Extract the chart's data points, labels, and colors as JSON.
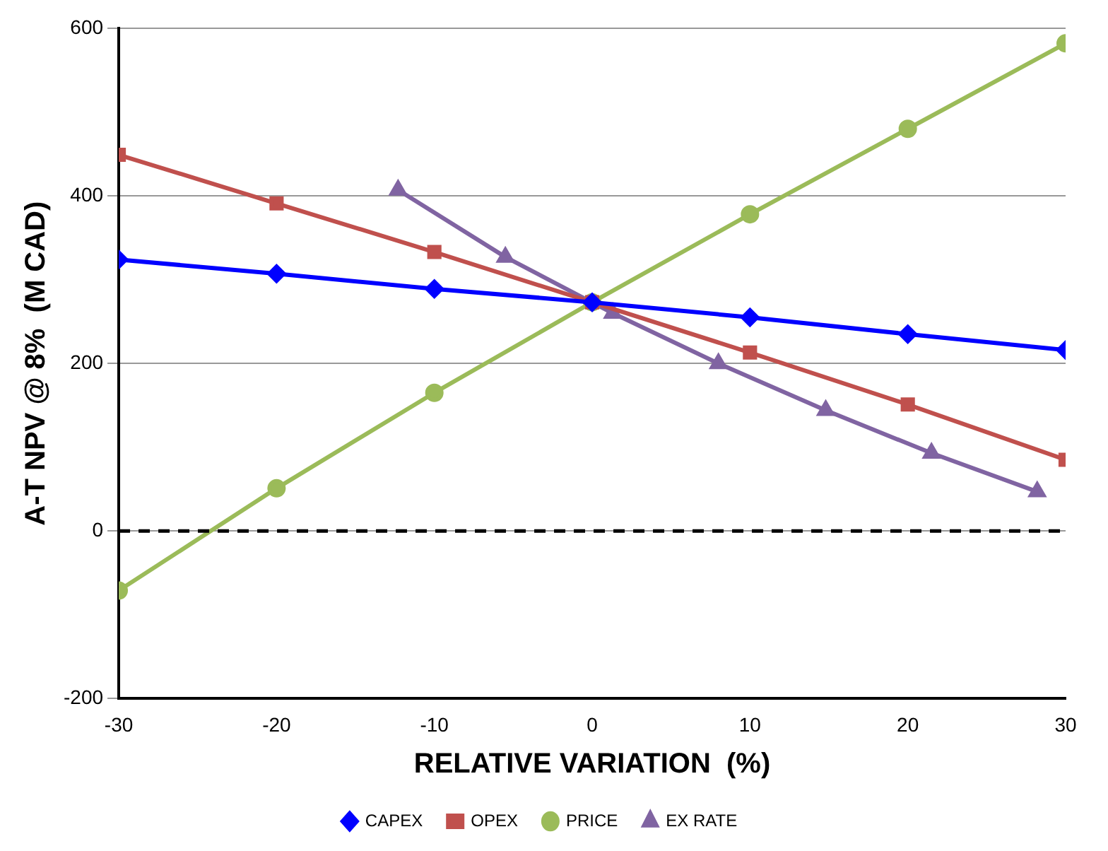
{
  "chart_data": {
    "type": "line",
    "xlabel": "RELATIVE VARIATION  (%)",
    "ylabel": "A-T NPV @ 8%  (M CAD)",
    "xlim": [
      -30,
      30
    ],
    "xticks": [
      -30,
      -20,
      -10,
      0,
      10,
      20,
      30
    ],
    "ylim": [
      -200,
      600
    ],
    "yticks": [
      -200,
      0,
      200,
      400,
      600
    ],
    "grid": "y",
    "legend": "bottom",
    "line_style": "solid",
    "ref_lines": [
      {
        "axis": "y",
        "value": 0,
        "color": "#000000",
        "line_style": "dashed"
      }
    ],
    "series": [
      {
        "name": "CAPEX",
        "color": "#0000ff",
        "marker": "diamond",
        "x": [
          -30,
          -20,
          -10,
          0,
          10,
          20,
          30
        ],
        "values": [
          324,
          307,
          289,
          273,
          255,
          235,
          216
        ]
      },
      {
        "name": "OPEX",
        "color": "#c0504d",
        "marker": "square",
        "x": [
          -30,
          -20,
          -10,
          0,
          10,
          20,
          30
        ],
        "values": [
          449,
          391,
          333,
          273,
          213,
          151,
          85
        ]
      },
      {
        "name": "PRICE",
        "color": "#9bbb59",
        "marker": "circle",
        "x": [
          -30,
          -20,
          -10,
          0,
          10,
          20,
          30
        ],
        "values": [
          -71,
          51,
          165,
          273,
          378,
          480,
          582
        ]
      },
      {
        "name": "EX RATE",
        "color": "#8064a2",
        "marker": "triangle",
        "x": [
          -12.3,
          -5.5,
          1.3,
          8.0,
          14.8,
          21.5,
          28.2
        ],
        "values": [
          407,
          327,
          260,
          200,
          144,
          93,
          47
        ]
      }
    ]
  }
}
